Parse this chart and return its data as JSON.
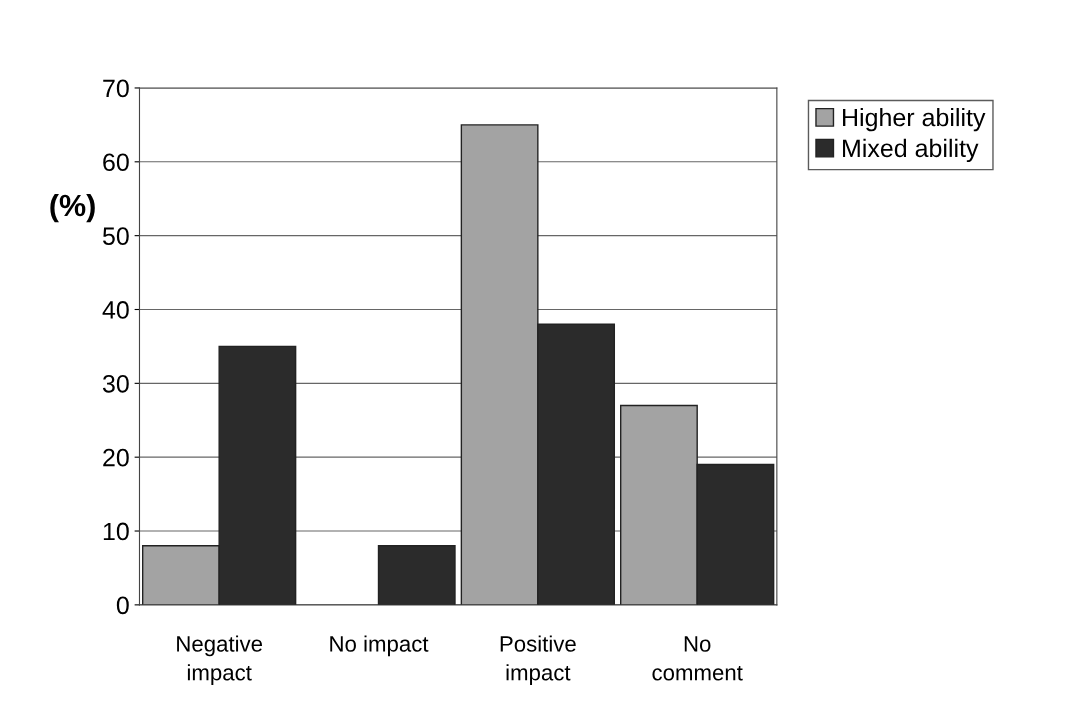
{
  "chart_data": {
    "type": "bar",
    "ylabel": "(%)",
    "categories": [
      "Negative\nimpact",
      "No impact",
      "Positive\nimpact",
      "No\ncomment"
    ],
    "series": [
      {
        "name": "Higher ability",
        "color": "#a3a3a3",
        "values": [
          8,
          0,
          65,
          27
        ]
      },
      {
        "name": "Mixed ability",
        "color": "#2b2b2b",
        "values": [
          35,
          8,
          38,
          19
        ]
      }
    ],
    "ylim": [
      0,
      70
    ],
    "yticks": [
      0,
      10,
      20,
      30,
      40,
      50,
      60,
      70
    ],
    "grid": "y",
    "legend": "top right"
  }
}
